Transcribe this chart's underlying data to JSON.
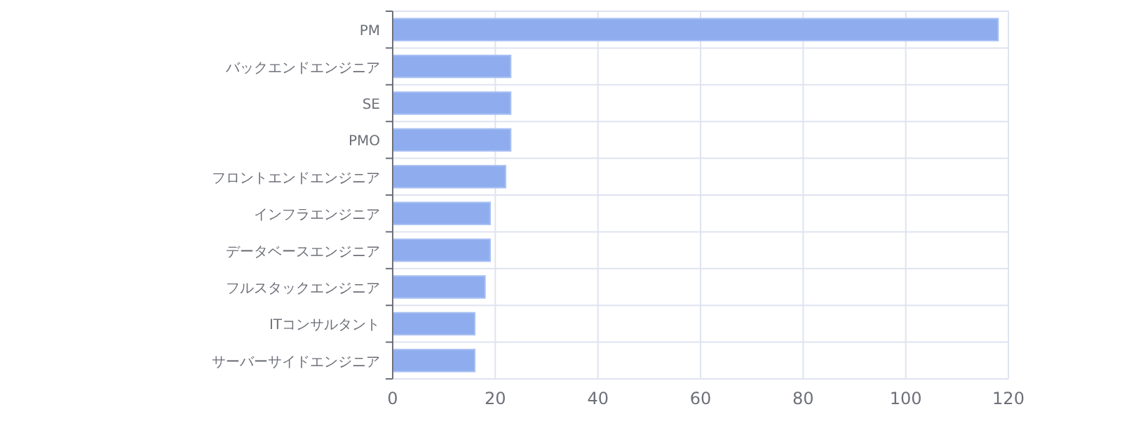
{
  "chart_data": {
    "type": "bar",
    "orientation": "horizontal",
    "categories": [
      "PM",
      "バックエンドエンジニア",
      "SE",
      "PMO",
      "フロントエンドエンジニア",
      "インフラエンジニア",
      "データベースエンジニア",
      "フルスタックエンジニア",
      "ITコンサルタント",
      "サーバーサイドエンジニア"
    ],
    "values": [
      118,
      23,
      23,
      23,
      22,
      19,
      19,
      18,
      16,
      16
    ],
    "color": "#8fadee",
    "xlim": [
      0,
      120
    ],
    "xticks": [
      0,
      20,
      40,
      60,
      80,
      100,
      120
    ],
    "grid": true
  }
}
